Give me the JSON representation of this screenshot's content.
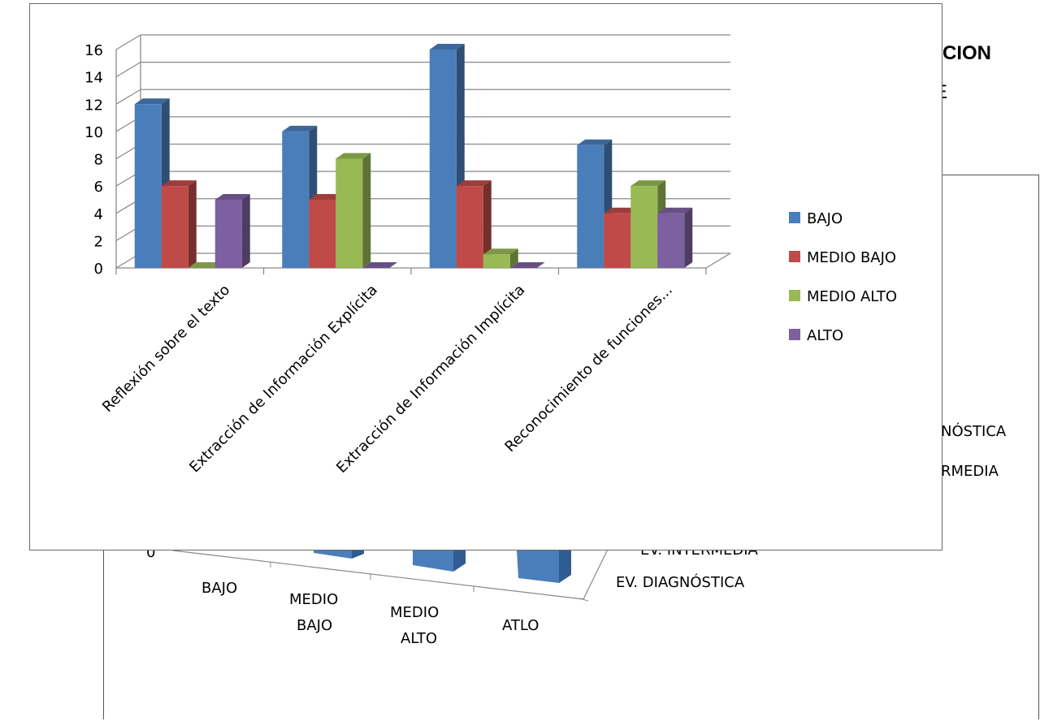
{
  "background_title": {
    "line1_fragment": "CION",
    "line2_fragment": "E"
  },
  "back_chart": {
    "categories": [
      "BAJO",
      "MEDIO BAJO",
      "MEDIO ALTO",
      "ATLO"
    ],
    "series": [
      "EV. DIAGNÓSTICA",
      "EV. INTERMEDIA"
    ],
    "legend_fragments": [
      "NÓSTICA",
      "RMEDIA"
    ],
    "zero_tick": "0",
    "series_color": "#4a7ebb"
  },
  "chart_data": {
    "type": "bar",
    "title": "",
    "xlabel": "",
    "ylabel": "",
    "ylim": [
      0,
      16
    ],
    "yticks": [
      "0",
      "2",
      "4",
      "6",
      "8",
      "10",
      "12",
      "14",
      "16"
    ],
    "categories": [
      "Reflexión sobre el texto",
      "Extracción de Información Explícita",
      "Extracción de Información Implícita",
      "Reconocimiento de funciones..."
    ],
    "series": [
      {
        "name": "BAJO",
        "color": "#4a7ebb",
        "values": [
          12,
          10,
          16,
          9
        ]
      },
      {
        "name": "MEDIO BAJO",
        "color": "#be4b48",
        "values": [
          6,
          5,
          6,
          4
        ]
      },
      {
        "name": "MEDIO ALTO",
        "color": "#98b954",
        "values": [
          0,
          8,
          1,
          6
        ]
      },
      {
        "name": "ALTO",
        "color": "#7d60a0",
        "values": [
          5,
          0,
          0,
          4
        ]
      }
    ],
    "grid": true,
    "legend_position": "right"
  }
}
